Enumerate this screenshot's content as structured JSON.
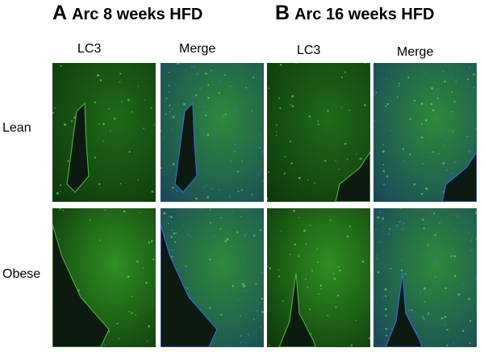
{
  "panels": [
    {
      "letter": "A",
      "title": "Arc 8 weeks HFD",
      "columns": [
        "LC3",
        "Merge"
      ]
    },
    {
      "letter": "B",
      "title": "Arc 16 weeks HFD",
      "columns": [
        "LC3",
        "Merge"
      ]
    }
  ],
  "rows": [
    "Lean",
    "Obese"
  ],
  "colors": {
    "lc3_green": "#2e8a1e",
    "dapi_blue": "#2a4fb0",
    "background": "#ffffff"
  }
}
